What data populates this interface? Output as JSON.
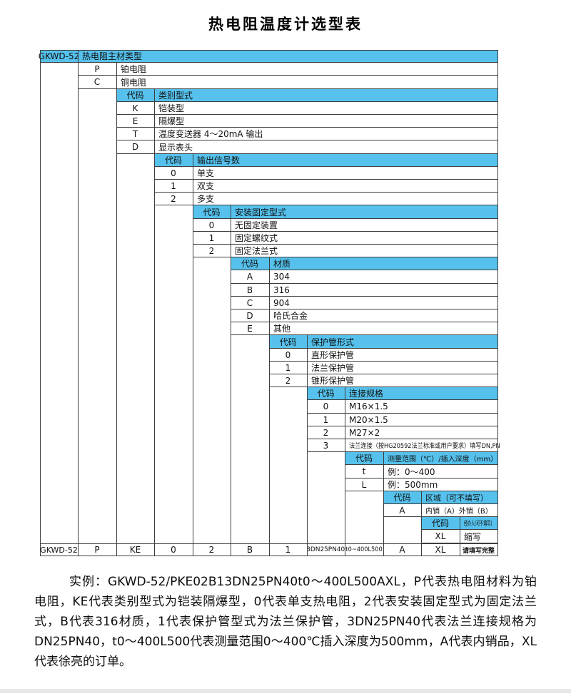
{
  "page": {
    "title": "热电阻温度计选型表"
  },
  "colors": {
    "header_bg": "#55c1ec",
    "border": "#3f3f3f",
    "text": "#111111"
  },
  "table": {
    "code_label": "代码",
    "blocks": [
      {
        "header_label": "GKWD-52",
        "title": "热电阻主材类型",
        "options": [
          {
            "code": "P",
            "desc": "铂电阻"
          },
          {
            "code": "C",
            "desc": "铜电阻"
          }
        ]
      },
      {
        "title": "类别型式",
        "options": [
          {
            "code": "K",
            "desc": "铠装型"
          },
          {
            "code": "E",
            "desc": "隔爆型"
          },
          {
            "code": "T",
            "desc": "温度变送器 4～20mA 输出"
          },
          {
            "code": "D",
            "desc": "显示表头"
          }
        ]
      },
      {
        "title": "输出信号数",
        "options": [
          {
            "code": "0",
            "desc": "单支"
          },
          {
            "code": "1",
            "desc": "双支"
          },
          {
            "code": "2",
            "desc": "多支"
          }
        ]
      },
      {
        "title": "安装固定型式",
        "options": [
          {
            "code": "0",
            "desc": "无固定装置"
          },
          {
            "code": "1",
            "desc": "固定螺纹式"
          },
          {
            "code": "2",
            "desc": "固定法兰式"
          }
        ]
      },
      {
        "title": "材质",
        "options": [
          {
            "code": "A",
            "desc": "304"
          },
          {
            "code": "B",
            "desc": "316"
          },
          {
            "code": "C",
            "desc": "904"
          },
          {
            "code": "D",
            "desc": "哈氏合金"
          },
          {
            "code": "E",
            "desc": "其他"
          }
        ]
      },
      {
        "title": "保护管形式",
        "options": [
          {
            "code": "0",
            "desc": "直形保护管"
          },
          {
            "code": "1",
            "desc": "法兰保护管"
          },
          {
            "code": "2",
            "desc": "锥形保护管"
          }
        ]
      },
      {
        "title": "连接规格",
        "options": [
          {
            "code": "0",
            "desc": "M16×1.5"
          },
          {
            "code": "1",
            "desc": "M20×1.5"
          },
          {
            "code": "2",
            "desc": "M27×2"
          },
          {
            "code": "3",
            "desc": "法兰连接（按HG20592法兰标准或用户要求）填写DN,PN"
          }
        ]
      },
      {
        "title": "测量范围（℃）/插入深度（mm）",
        "options": [
          {
            "code": "t",
            "desc": "例：0～400"
          },
          {
            "code": "L",
            "desc": "例：500mm"
          }
        ]
      },
      {
        "title": "区域（可不填写）",
        "options": [
          {
            "code": "A",
            "desc": "内销（A）外销（B）"
          }
        ]
      },
      {
        "title": "经办人(可不填写)",
        "options": [
          {
            "code": "XL",
            "desc": "缩写"
          }
        ]
      }
    ],
    "summary": [
      "GKWD-52",
      "P",
      "KE",
      "0",
      "2",
      "B",
      "1",
      "3DN25PN40",
      "t0~400L500",
      "A",
      "XL",
      "请填写完整"
    ]
  },
  "example": {
    "text": "实例：GKWD-52/PKE02B13DN25PN40t0～400L500AXL，P代表热电阻材料为铂电阻，KE代表类别型式为铠装隔爆型，0代表单支热电阻，2代表安装固定型式为固定法兰式，B代表316材质，1代表保护管型式为法兰保护管，3DN25PN40代表法兰连接规格为DN25PN40，t0～400L500代表测量范围0～400℃插入深度为500mm，A代表内销品，XL代表徐亮的订单。"
  }
}
